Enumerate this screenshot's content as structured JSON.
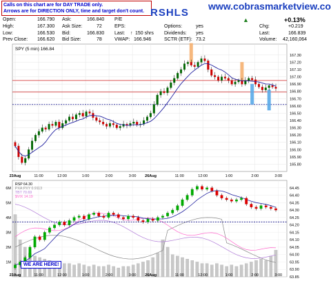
{
  "header": {
    "note_line1": "Calls on this chart are for DAY TRADE only.",
    "note_line2": "Arrows are for DIRECTION ONLY, time and target don't count.",
    "ticker": "RSHLS",
    "site": "www.cobrasmarketview.com",
    "change_pct": "+0.13%",
    "quote": {
      "open_label": "Open:",
      "open": "166.790",
      "high_label": "High:",
      "high": "167.300",
      "low_label": "Low:",
      "low": "166.530",
      "prev_label": "Prev Close:",
      "prev": "166.620",
      "ask_label": "Ask:",
      "ask": "166.840",
      "asksize_label": "Ask Size:",
      "asksize": "72",
      "bid_label": "Bid:",
      "bid": "166.830",
      "bidsize_label": "Bid Size:",
      "bidsize": "78",
      "pe_label": "P/E",
      "pe": "",
      "eps_label": "EPS:",
      "eps": "",
      "last_label": "Last:",
      "lastshrs": "150 shrs",
      "vwap_label": "VWAP:",
      "vwap": "166.946",
      "options_label": "Options:",
      "options": "yes",
      "div_label": "Dividends:",
      "div": "yes",
      "sctr_label": "SCTR (ETF):",
      "sctr": "73.2",
      "chg_label": "Chg:",
      "chg": "+0.219",
      "last2_label": "Last:",
      "last2": "166.839",
      "vol_label": "Volume:",
      "vol": "42,160,064"
    }
  },
  "chart_data": [
    {
      "type": "candlestick",
      "title": "",
      "series_label": "SPY (5 min) 166.84",
      "ylim": [
        165.7,
        167.45
      ],
      "yticks": [
        "167.30",
        "167.20",
        "167.10",
        "167.00",
        "166.90",
        "166.80",
        "166.70",
        "166.60",
        "166.50",
        "166.40",
        "166.30",
        "166.20",
        "166.10",
        "166.00",
        "165.90",
        "165.80"
      ],
      "xticks": [
        "23Aug",
        "11:00",
        "12:00",
        "1:00",
        "2:00",
        "3:00",
        "26Aug",
        "11:00",
        "12:00",
        "1:00",
        "2:00",
        "3:00"
      ],
      "close": [
        166.05,
        165.9,
        165.82,
        165.88,
        166.0,
        166.12,
        166.2,
        166.25,
        166.3,
        166.28,
        166.35,
        166.33,
        166.38,
        166.3,
        166.36,
        166.4,
        166.45,
        166.42,
        166.48,
        166.5,
        166.46,
        166.52,
        166.5,
        166.44,
        166.4,
        166.38,
        166.35,
        166.32,
        166.36,
        166.34,
        166.3,
        166.32,
        166.35,
        166.33,
        166.36,
        166.38,
        166.34,
        166.35,
        166.4,
        166.45,
        166.5,
        166.62,
        166.75,
        166.8,
        166.78,
        166.85,
        166.92,
        166.98,
        167.05,
        167.1,
        167.18,
        167.2,
        167.16,
        167.14,
        167.2,
        167.25,
        167.22,
        167.1,
        167.02,
        167.0,
        166.95,
        167.0,
        166.98,
        166.95,
        166.9,
        166.93,
        166.95,
        166.9,
        166.95,
        166.98,
        166.96,
        166.9,
        166.86,
        166.82,
        166.85,
        166.88,
        166.86,
        166.84
      ],
      "hlines": [
        {
          "value": 166.95,
          "color": "#d02020",
          "label": "resistance"
        },
        {
          "value": 166.79,
          "color": "#d02020",
          "label": "open"
        },
        {
          "value": 166.62,
          "color": "#000080",
          "label": "prev close"
        }
      ],
      "markers": [
        {
          "kind": "down",
          "index": 52,
          "color": "#f5b070"
        },
        {
          "kind": "down",
          "index": 67,
          "color": "#f5b070"
        },
        {
          "kind": "up",
          "index": 70,
          "color": "#58a8e8"
        },
        {
          "kind": "up",
          "index": 75,
          "color": "#58a8e8"
        }
      ]
    },
    {
      "type": "line",
      "series": [
        {
          "name": "RSP 64.30",
          "color": "#000000"
        },
        {
          "name": "PXA:PXY 0.9113",
          "color": "#888888"
        },
        {
          "name": "TBT 70.69",
          "color": "#b07ad8"
        },
        {
          "name": "$VIX 14.19",
          "color": "#ff66cc"
        }
      ],
      "ylim_right": [
        63.85,
        64.5
      ],
      "yticks_right": [
        "64.45",
        "64.40",
        "64.35",
        "64.30",
        "64.25",
        "64.20",
        "64.15",
        "64.10",
        "64.05",
        "64.00",
        "63.95",
        "63.90",
        "63.85"
      ],
      "yticks_left": [
        "6M",
        "5M",
        "4M",
        "3M",
        "2M",
        "1M"
      ],
      "xticks": [
        "23Aug",
        "11:00",
        "12:00",
        "1:00",
        "2:00",
        "3:00",
        "26Aug",
        "11:00",
        "12:00",
        "1:00",
        "2:00",
        "3:00"
      ],
      "rsp_close": [
        63.93,
        63.95,
        63.98,
        64.05,
        64.12,
        64.1,
        64.15,
        64.18,
        64.2,
        64.22,
        64.2,
        64.23,
        64.25,
        64.26,
        64.24,
        64.27,
        64.28,
        64.26,
        64.25,
        64.28,
        64.27,
        64.25,
        64.24,
        64.26,
        64.25,
        64.23,
        64.22,
        64.24,
        64.23,
        64.25,
        64.26,
        64.28,
        64.3,
        64.33,
        64.37,
        64.4,
        64.44,
        64.46,
        64.44,
        64.45,
        64.43,
        64.4,
        64.38,
        64.37,
        64.36,
        64.37,
        64.38,
        64.34,
        64.32,
        64.31,
        64.33,
        64.32,
        64.31,
        64.3
      ],
      "volume_millions": [
        4.2,
        2.5,
        2.0,
        1.6,
        1.4,
        1.3,
        1.2,
        1.1,
        1.0,
        1.0,
        0.9,
        0.9,
        0.8,
        0.9,
        0.8,
        0.7,
        0.8,
        0.7,
        0.7,
        0.8,
        0.7,
        0.6,
        0.7,
        0.7,
        0.8,
        0.9,
        1.0,
        1.1,
        1.3,
        1.6,
        2.5,
        2.0,
        1.5,
        1.4,
        1.3,
        1.2,
        1.1,
        1.0,
        0.9,
        0.9,
        0.8,
        0.9,
        0.8,
        0.7,
        0.8,
        0.7,
        0.8,
        0.9,
        1.0,
        1.1,
        1.2,
        1.1,
        1.4,
        1.8
      ],
      "volume_ymax": 6.5,
      "hline": {
        "value": 64.22,
        "color": "#000080"
      },
      "badge": "WE ARE HERE!"
    }
  ]
}
